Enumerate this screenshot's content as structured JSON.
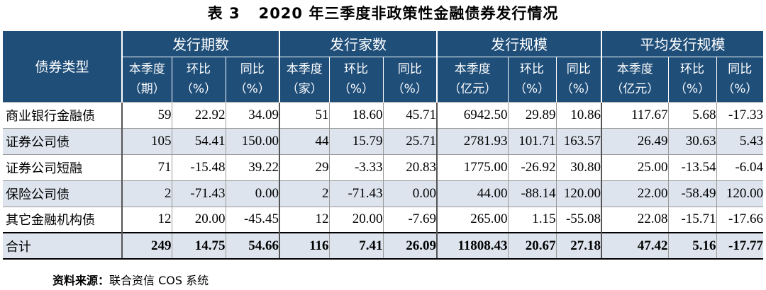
{
  "title": {
    "number": "表 3",
    "text": "2020 年三季度非政策性金融债券发行情况"
  },
  "header": {
    "type_label": "债券类型",
    "groups": [
      "发行期数",
      "发行家数",
      "发行规模",
      "平均发行规模"
    ],
    "subcolumns": [
      [
        "本季度",
        "（期）"
      ],
      [
        "环比",
        "（%）"
      ],
      [
        "同比",
        "（%）"
      ],
      [
        "本季度",
        "（家）"
      ],
      [
        "环比",
        "（%）"
      ],
      [
        "同比",
        "（%）"
      ],
      [
        "本季度",
        "（亿元）"
      ],
      [
        "环比",
        "（%）"
      ],
      [
        "同比",
        "（%）"
      ],
      [
        "本季度",
        "（亿元）"
      ],
      [
        "环比",
        "（%）"
      ],
      [
        "同比",
        "（%）"
      ]
    ]
  },
  "rows": [
    {
      "name": "商业银行金融债",
      "values": [
        "59",
        "22.92",
        "34.09",
        "51",
        "18.60",
        "45.71",
        "6942.50",
        "29.89",
        "10.86",
        "117.67",
        "5.68",
        "-17.33"
      ]
    },
    {
      "name": "证券公司债",
      "values": [
        "105",
        "54.41",
        "150.00",
        "44",
        "15.79",
        "25.71",
        "2781.93",
        "101.71",
        "163.57",
        "26.49",
        "30.63",
        "5.43"
      ]
    },
    {
      "name": "证券公司短融",
      "values": [
        "71",
        "-15.48",
        "39.22",
        "29",
        "-3.33",
        "20.83",
        "1775.00",
        "-26.92",
        "30.80",
        "25.00",
        "-13.54",
        "-6.04"
      ]
    },
    {
      "name": "保险公司债",
      "values": [
        "2",
        "-71.43",
        "0.00",
        "2",
        "-71.43",
        "0.00",
        "44.00",
        "-88.14",
        "120.00",
        "22.00",
        "-58.49",
        "120.00"
      ]
    },
    {
      "name": "其它金融机构债",
      "values": [
        "12",
        "20.00",
        "-45.45",
        "12",
        "20.00",
        "-7.69",
        "265.00",
        "1.15",
        "-55.08",
        "22.08",
        "-15.71",
        "-17.66"
      ]
    },
    {
      "name": "合计",
      "values": [
        "249",
        "14.75",
        "54.66",
        "116",
        "7.41",
        "26.09",
        "11808.43",
        "20.67",
        "27.18",
        "47.42",
        "5.16",
        "-17.77"
      ]
    }
  ],
  "source": {
    "label": "资料来源：",
    "text": "联合资信 COS 系统"
  },
  "colors": {
    "header_bg": "#1f4e79",
    "stripe_bg": "#dde4ee"
  }
}
